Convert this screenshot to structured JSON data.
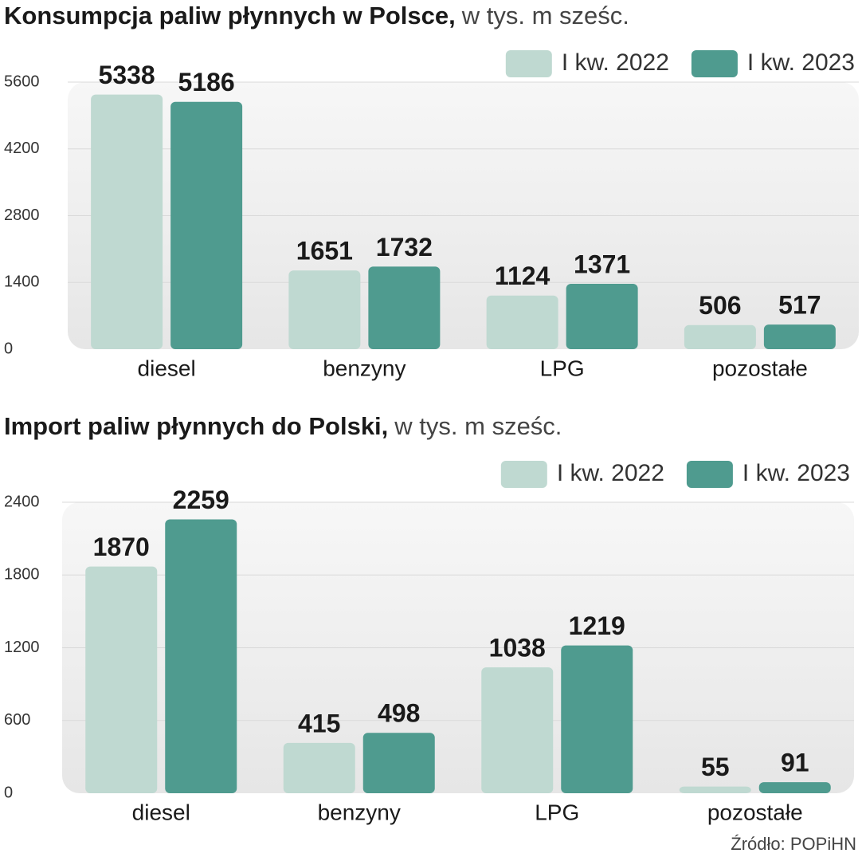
{
  "chart_data": [
    {
      "type": "bar",
      "title": "Konsumpcja paliw płynnych w Polsce,",
      "subtitle": "w tys. m sześc.",
      "categories": [
        "diesel",
        "benzyny",
        "LPG",
        "pozostałe"
      ],
      "series": [
        {
          "name": "I kw. 2022",
          "color": "#bfd9d1",
          "values": [
            5338,
            1651,
            1124,
            506
          ]
        },
        {
          "name": "I kw. 2023",
          "color": "#4f9b8f",
          "values": [
            5186,
            1732,
            1371,
            517
          ]
        }
      ],
      "ylim": [
        0,
        5600
      ],
      "yticks": [
        0,
        1400,
        2800,
        4200,
        5600
      ],
      "grid": true,
      "legend": "top-right"
    },
    {
      "type": "bar",
      "title": "Import paliw płynnych do Polski,",
      "subtitle": "w tys. m sześc.",
      "categories": [
        "diesel",
        "benzyny",
        "LPG",
        "pozostałe"
      ],
      "series": [
        {
          "name": "I kw. 2022",
          "color": "#bfd9d1",
          "values": [
            1870,
            415,
            1038,
            55
          ]
        },
        {
          "name": "I kw. 2023",
          "color": "#4f9b8f",
          "values": [
            2259,
            498,
            1219,
            91
          ]
        }
      ],
      "ylim": [
        0,
        2400
      ],
      "yticks": [
        0,
        600,
        1200,
        1800,
        2400
      ],
      "grid": true,
      "legend": "top-right"
    }
  ],
  "source": "Źródło: POPiHN"
}
